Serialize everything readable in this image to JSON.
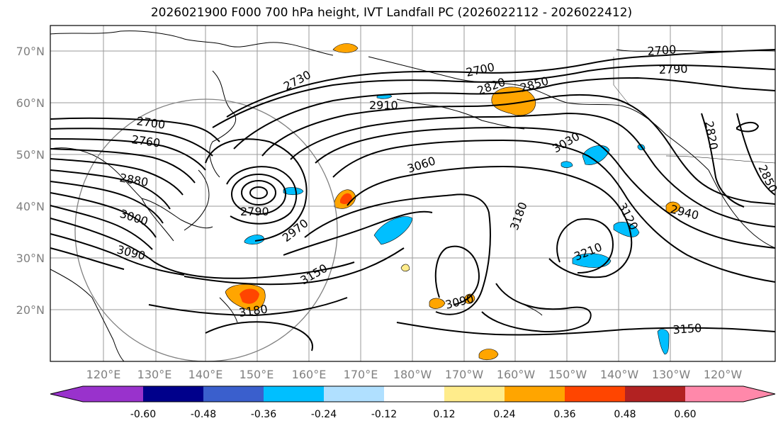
{
  "title": "2026021900 F000 700 hPa height, IVT Landfall PC (2026022112 - 2026022412)",
  "lat_ticks": [
    "70°N",
    "60°N",
    "50°N",
    "40°N",
    "30°N",
    "20°N"
  ],
  "lon_ticks": [
    "120°E",
    "130°E",
    "140°E",
    "150°E",
    "160°E",
    "170°E",
    "180°W",
    "170°W",
    "160°W",
    "150°W",
    "140°W",
    "130°W",
    "120°W"
  ],
  "contour_labels": [
    "2700",
    "2760",
    "2880",
    "3000",
    "3090",
    "2730",
    "2790",
    "2970",
    "3150",
    "3180",
    "2910",
    "2700",
    "2820",
    "2850",
    "3060",
    "3030",
    "3180",
    "3090",
    "3210",
    "3120",
    "2940",
    "2700",
    "2790",
    "2820",
    "2850",
    "3150"
  ],
  "colorbar": {
    "labels": [
      "-0.60",
      "-0.48",
      "-0.36",
      "-0.24",
      "-0.12",
      "0.12",
      "0.24",
      "0.36",
      "0.48",
      "0.60"
    ],
    "colors": [
      "#9932cc",
      "#00008b",
      "#3a5fcd",
      "#00bfff",
      "#b0e0ff",
      "#ffffff",
      "#ffec8b",
      "#ffa500",
      "#ff4500",
      "#b22222",
      "#ff88aa"
    ]
  }
}
